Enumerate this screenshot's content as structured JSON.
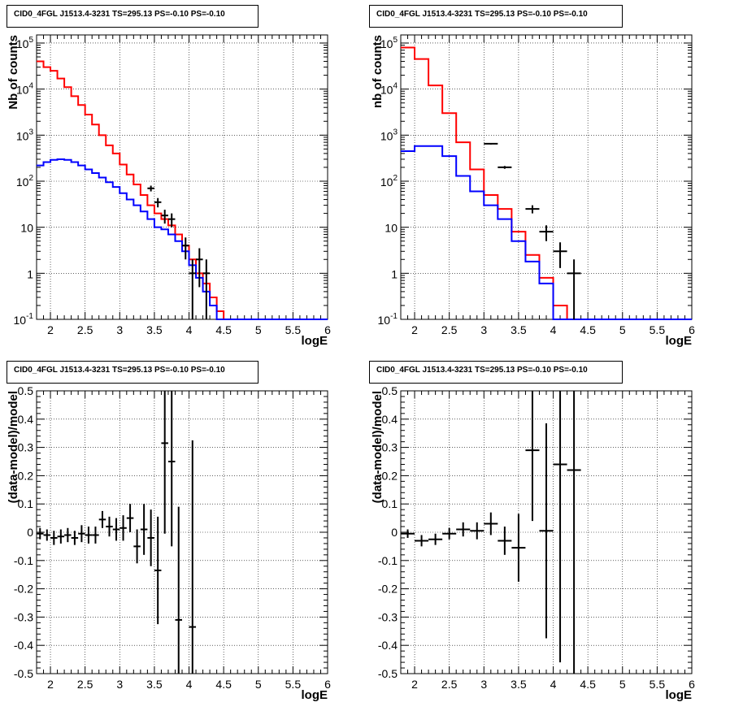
{
  "chart_data": [
    {
      "type": "histogram",
      "title": "CID0_4FGL J1513.4-3231 TS=295.13 PS=-0.10 PS=-0.10",
      "xlabel": "logE",
      "ylabel": "Nb of counts",
      "xlim": [
        1.8,
        6.0
      ],
      "ylim": [
        0.1,
        150000
      ],
      "yscale": "log",
      "grid": true,
      "xticks": [
        "2",
        "2.5",
        "3",
        "3.5",
        "4",
        "4.5",
        "5",
        "5.5",
        "6"
      ],
      "yticks": [
        [
          "0.1",
          "10",
          "-1"
        ],
        [
          "1",
          "1",
          ""
        ],
        [
          "10",
          "10",
          ""
        ],
        [
          "100",
          "10",
          "2"
        ],
        [
          "1000",
          "10",
          "3"
        ],
        [
          "10000",
          "10",
          "4"
        ],
        [
          "100000",
          "10",
          "5"
        ]
      ],
      "bin_edges": [
        1.8,
        1.9,
        2.0,
        2.1,
        2.2,
        2.3,
        2.4,
        2.5,
        2.6,
        2.7,
        2.8,
        2.9,
        3.0,
        3.1,
        3.2,
        3.3,
        3.4,
        3.5,
        3.6,
        3.7,
        3.8,
        3.9,
        4.0,
        4.1,
        4.2,
        4.3,
        4.4,
        4.5,
        4.6,
        4.7,
        4.8,
        4.9,
        5.0,
        5.1,
        5.2,
        5.3,
        5.4,
        5.5,
        5.6,
        5.7,
        5.8,
        5.9,
        6.0
      ],
      "series": [
        {
          "color": "#ff0000",
          "style": "step",
          "values": [
            40000,
            30000,
            25000,
            17000,
            11000,
            7000,
            4500,
            2800,
            1700,
            1000,
            600,
            400,
            230,
            140,
            85,
            50,
            30,
            20,
            15,
            11,
            7,
            4,
            2,
            1,
            0.6,
            0.3,
            0.15,
            0.1,
            0.1,
            0.1,
            0.1,
            0.1,
            0.1,
            0.1,
            0.1,
            0.1,
            0.1,
            0.1,
            0.1,
            0.1,
            0.1,
            0.1
          ]
        },
        {
          "color": "#0000ff",
          "style": "step",
          "values": [
            220,
            260,
            290,
            300,
            290,
            260,
            220,
            180,
            150,
            120,
            95,
            75,
            55,
            40,
            30,
            22,
            15,
            10,
            9,
            7,
            5,
            3,
            1.5,
            0.8,
            0.4,
            0.2,
            0.1,
            0.1,
            0.1,
            0.1,
            0.1,
            0.1,
            0.1,
            0.1,
            0.1,
            0.1,
            0.1,
            0.1,
            0.1,
            0.1,
            0.1,
            0.1
          ]
        },
        {
          "color": "#000000",
          "style": "points",
          "points": [
            [
              3.45,
              70,
              10
            ],
            [
              3.55,
              35,
              8
            ],
            [
              3.65,
              18,
              6
            ],
            [
              3.75,
              15,
              5
            ],
            [
              3.95,
              4,
              2
            ],
            [
              4.05,
              1,
              1
            ],
            [
              4.15,
              2,
              1.5
            ],
            [
              4.25,
              1,
              1
            ]
          ]
        }
      ]
    },
    {
      "type": "histogram",
      "title": "CID0_4FGL J1513.4-3231 TS=295.13 PS=-0.10 PS=-0.10",
      "xlabel": "logE",
      "ylabel": "nb of counts",
      "xlim": [
        1.8,
        6.0
      ],
      "ylim": [
        0.1,
        150000
      ],
      "yscale": "log",
      "grid": true,
      "xticks": [
        "2",
        "2.5",
        "3",
        "3.5",
        "4",
        "4.5",
        "5",
        "5.5",
        "6"
      ],
      "yticks": [
        [
          "0.1",
          "10",
          "-1"
        ],
        [
          "1",
          "1",
          ""
        ],
        [
          "10",
          "10",
          ""
        ],
        [
          "100",
          "10",
          "2"
        ],
        [
          "1000",
          "10",
          "3"
        ],
        [
          "10000",
          "10",
          "4"
        ],
        [
          "100000",
          "10",
          "5"
        ]
      ],
      "bin_edges": [
        1.8,
        2.0,
        2.2,
        2.4,
        2.6,
        2.8,
        3.0,
        3.2,
        3.4,
        3.6,
        3.8,
        4.0,
        4.2,
        4.4,
        4.6,
        4.8,
        5.0,
        5.2,
        5.4,
        5.6,
        5.8,
        6.0
      ],
      "series": [
        {
          "color": "#ff0000",
          "style": "step",
          "values": [
            80000,
            45000,
            12000,
            3000,
            700,
            180,
            50,
            25,
            8,
            2.5,
            0.8,
            0.2,
            0.1,
            0.1,
            0.1,
            0.1,
            0.1,
            0.1,
            0.1,
            0.1,
            0.1
          ]
        },
        {
          "color": "#0000ff",
          "style": "step",
          "values": [
            450,
            580,
            580,
            350,
            130,
            60,
            30,
            15,
            5,
            1.8,
            0.6,
            0.1,
            0.1,
            0.1,
            0.1,
            0.1,
            0.1,
            0.1,
            0.1,
            0.1,
            0.1
          ]
        },
        {
          "color": "#000000",
          "style": "points",
          "points": [
            [
              3.1,
              650,
              25
            ],
            [
              3.3,
              200,
              14
            ],
            [
              3.7,
              25,
              5
            ],
            [
              3.9,
              8,
              3
            ],
            [
              4.1,
              3,
              1.7
            ],
            [
              4.3,
              1,
              1
            ]
          ]
        }
      ]
    },
    {
      "type": "scatter",
      "title": "CID0_4FGL J1513.4-3231 TS=295.13 PS=-0.10 PS=-0.10",
      "xlabel": "logE",
      "ylabel": "(data-model)/model",
      "xlim": [
        1.8,
        6.0
      ],
      "ylim": [
        -0.5,
        0.5
      ],
      "grid": true,
      "xticks": [
        "2",
        "2.5",
        "3",
        "3.5",
        "4",
        "4.5",
        "5",
        "5.5",
        "6"
      ],
      "yticks_text": [
        "-0.5",
        "-0.4",
        "-0.3",
        "-0.2",
        "-0.1",
        "0",
        "0.1",
        "0.2",
        "0.3",
        "0.4",
        "0.5"
      ],
      "points": [
        [
          1.85,
          -0.005,
          0.02
        ],
        [
          1.95,
          -0.01,
          0.02
        ],
        [
          2.05,
          -0.02,
          0.025
        ],
        [
          2.15,
          -0.015,
          0.025
        ],
        [
          2.25,
          -0.01,
          0.025
        ],
        [
          2.35,
          -0.02,
          0.025
        ],
        [
          2.45,
          -0.005,
          0.03
        ],
        [
          2.55,
          -0.01,
          0.03
        ],
        [
          2.65,
          -0.01,
          0.03
        ],
        [
          2.75,
          0.045,
          0.03
        ],
        [
          2.85,
          0.02,
          0.035
        ],
        [
          2.95,
          0.01,
          0.04
        ],
        [
          3.05,
          0.015,
          0.045
        ],
        [
          3.15,
          0.05,
          0.05
        ],
        [
          3.25,
          -0.05,
          0.06
        ],
        [
          3.35,
          0.01,
          0.09
        ],
        [
          3.45,
          -0.02,
          0.1
        ],
        [
          3.55,
          -0.135,
          0.19
        ],
        [
          3.65,
          0.315,
          0.32
        ],
        [
          3.75,
          0.25,
          0.3
        ],
        [
          3.85,
          -0.31,
          0.4
        ],
        [
          4.05,
          -0.335,
          0.66
        ]
      ]
    },
    {
      "type": "scatter",
      "title": "CID0_4FGL J1513.4-3231 TS=295.13 PS=-0.10 PS=-0.10",
      "xlabel": "logE",
      "ylabel": "(data-model)/model",
      "xlim": [
        1.8,
        6.0
      ],
      "ylim": [
        -0.5,
        0.5
      ],
      "grid": true,
      "xticks": [
        "2",
        "2.5",
        "3",
        "3.5",
        "4",
        "4.5",
        "5",
        "5.5",
        "6"
      ],
      "yticks_text": [
        "-0.5",
        "-0.4",
        "-0.3",
        "-0.2",
        "-0.1",
        "0",
        "0.1",
        "0.2",
        "0.3",
        "0.4",
        "0.5"
      ],
      "points": [
        [
          1.9,
          -0.005,
          0.015
        ],
        [
          2.1,
          -0.03,
          0.02
        ],
        [
          2.3,
          -0.025,
          0.02
        ],
        [
          2.5,
          -0.005,
          0.02
        ],
        [
          2.7,
          0.01,
          0.025
        ],
        [
          2.9,
          0.005,
          0.03
        ],
        [
          3.1,
          0.03,
          0.04
        ],
        [
          3.3,
          -0.03,
          0.05
        ],
        [
          3.5,
          -0.055,
          0.12
        ],
        [
          3.7,
          0.29,
          0.25
        ],
        [
          3.9,
          0.005,
          0.38
        ],
        [
          4.1,
          0.24,
          0.7
        ],
        [
          4.3,
          0.22,
          0.8
        ]
      ]
    }
  ]
}
